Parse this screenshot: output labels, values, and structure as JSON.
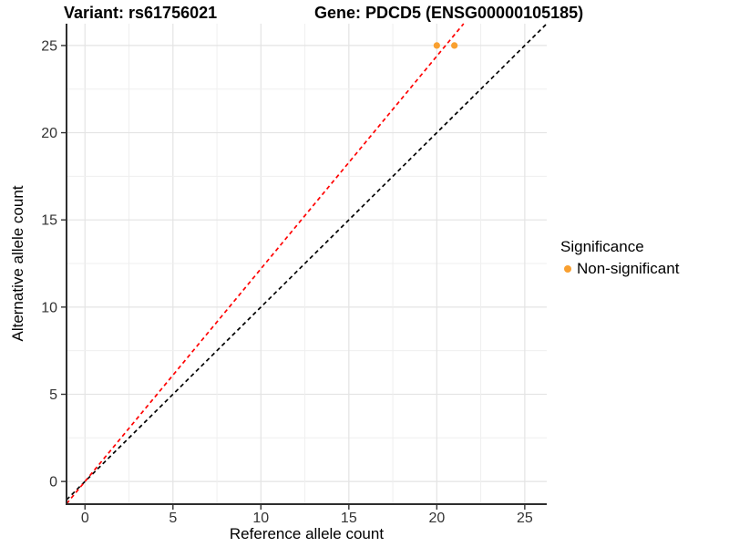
{
  "chart_data": {
    "type": "scatter",
    "titles": {
      "variant": "Variant: rs61756021",
      "gene": "Gene: PDCD5 (ENSG00000105185)"
    },
    "xlabel": "Reference allele count",
    "ylabel": "Alternative allele count",
    "xticks": [
      0,
      5,
      10,
      15,
      20,
      25
    ],
    "yticks": [
      0,
      5,
      10,
      15,
      20,
      25
    ],
    "xlim": [
      -1.05,
      26.25
    ],
    "ylim": [
      -1.3,
      26.25
    ],
    "grid": {
      "minor_every": 2.5,
      "major_every": 5,
      "major_color": "#e4e4e4",
      "minor_color": "#efefef",
      "tick_max": 25
    },
    "series": [
      {
        "name": "Non-significant",
        "color": "#F9A030",
        "points": [
          [
            20,
            25
          ],
          [
            21,
            25
          ]
        ]
      }
    ],
    "lines": [
      {
        "name": "identity-line",
        "slope": 1.0,
        "intercept": 0,
        "color": "#000000",
        "style": "dashed"
      },
      {
        "name": "expected-ratio-line",
        "slope": 1.2195,
        "intercept": 0,
        "color": "#FF0000",
        "style": "dashed"
      }
    ],
    "legend": {
      "title": "Significance",
      "position": "right",
      "items": [
        {
          "label": "Non-significant",
          "color": "#F9A030",
          "marker": "circle"
        }
      ]
    },
    "axis_color": "#2e2e2e",
    "tick_color": "#333333",
    "tick_label_color": "#333333"
  }
}
